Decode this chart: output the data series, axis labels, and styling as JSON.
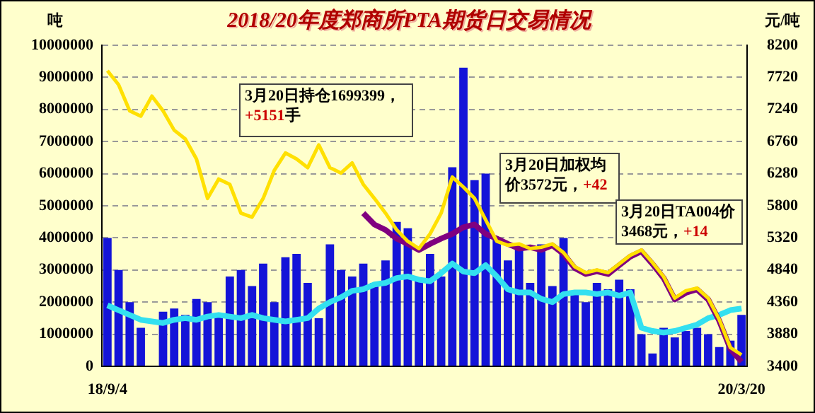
{
  "chart_data": {
    "type": "bar",
    "title": "2018/20年度郑商所PTA期货日交易情况",
    "ylabel": "吨",
    "y2label": "元/吨",
    "categories": [
      "18/9/4",
      null,
      null,
      null,
      null,
      null,
      null,
      null,
      null,
      null,
      null,
      null,
      null,
      null,
      null,
      null,
      null,
      null,
      null,
      null,
      null,
      null,
      null,
      null,
      null,
      null,
      null,
      null,
      null,
      null,
      null,
      null,
      null,
      null,
      null,
      null,
      null,
      null,
      null,
      null,
      null,
      null,
      null,
      null,
      null,
      null,
      null,
      null,
      null,
      null,
      null,
      null,
      null,
      null,
      null,
      null,
      null,
      "20/3/20"
    ],
    "series": [
      {
        "type": "bar",
        "color": "#1414d8",
        "values": [
          4000000,
          3000000,
          2000000,
          1200000,
          0,
          1700000,
          1800000,
          1600000,
          2100000,
          2000000,
          1600000,
          2800000,
          3000000,
          2500000,
          3200000,
          2000000,
          3400000,
          3500000,
          2600000,
          1500000,
          3800000,
          3000000,
          2800000,
          3200000,
          2600000,
          3300000,
          4500000,
          4300000,
          2700000,
          3500000,
          2800000,
          6200000,
          9300000,
          5800000,
          6000000,
          4000000,
          3300000,
          3700000,
          2600000,
          3800000,
          2500000,
          4000000,
          2300000,
          2000000,
          2600000,
          2400000,
          2700000,
          2400000,
          1000000,
          400000,
          1200000,
          900000,
          1100000,
          1200000,
          1000000,
          600000,
          800000,
          1600000
        ]
      },
      {
        "type": "line",
        "color": "#33e0f0",
        "values": [
          1900000,
          1750000,
          1600000,
          1450000,
          1400000,
          1350000,
          1450000,
          1500000,
          1450000,
          1550000,
          1600000,
          1550000,
          1500000,
          1600000,
          1500000,
          1450000,
          1400000,
          1450000,
          1500000,
          1800000,
          2000000,
          2150000,
          2350000,
          2400000,
          2550000,
          2600000,
          2750000,
          2800000,
          2700000,
          2650000,
          2900000,
          3200000,
          2950000,
          2900000,
          3150000,
          2800000,
          2400000,
          2300000,
          2300000,
          2100000,
          2000000,
          2250000,
          2300000,
          2300000,
          2250000,
          2300000,
          2200000,
          2300000,
          1200000,
          1100000,
          1050000,
          1100000,
          1200000,
          1300000,
          1500000,
          1600000,
          1750000,
          1800000
        ]
      },
      {
        "type": "line",
        "axis": "y2",
        "color": "#ffe000",
        "values": [
          7820,
          7610,
          7220,
          7140,
          7440,
          7220,
          6930,
          6800,
          6500,
          5910,
          6200,
          6120,
          5690,
          5630,
          5910,
          6330,
          6590,
          6500,
          6370,
          6710,
          6370,
          6290,
          6440,
          6120,
          5910,
          5690,
          5440,
          5270,
          5160,
          5380,
          5690,
          6230,
          6080,
          5910,
          5590,
          5270,
          5210,
          5230,
          5160,
          5180,
          5230,
          5100,
          4890,
          4800,
          4840,
          4800,
          4930,
          5060,
          5140,
          4950,
          4740,
          4420,
          4530,
          4570,
          4420,
          4100,
          3680,
          3572
        ]
      },
      {
        "type": "line",
        "axis": "y2",
        "color": "#800080",
        "values": [
          null,
          null,
          null,
          null,
          null,
          null,
          null,
          null,
          null,
          null,
          null,
          null,
          null,
          null,
          null,
          null,
          null,
          null,
          null,
          null,
          null,
          null,
          null,
          5690,
          5520,
          5440,
          5310,
          5230,
          5140,
          5230,
          5310,
          5380,
          5480,
          5520,
          5380,
          5310,
          5230,
          5160,
          5180,
          5140,
          5210,
          5080,
          4870,
          4780,
          4820,
          4780,
          4910,
          5040,
          5120,
          4930,
          4720,
          4400,
          4500,
          4550,
          4400,
          4080,
          3660,
          3468
        ]
      }
    ],
    "ylim": [
      0,
      10000000
    ],
    "yticks": [
      0,
      1000000,
      2000000,
      3000000,
      4000000,
      5000000,
      6000000,
      7000000,
      8000000,
      9000000,
      10000000
    ],
    "y2lim": [
      3400,
      8200
    ],
    "y2ticks": [
      3400,
      3880,
      4360,
      4840,
      5320,
      5800,
      6280,
      6760,
      7240,
      7720,
      8200
    ],
    "grid": "y",
    "legend": false,
    "annotations": [
      "3月20日持仓1699399，+5151手",
      "3月20日加权均价3572元，+42",
      "3月20日TA004价3468元，+14"
    ]
  }
}
